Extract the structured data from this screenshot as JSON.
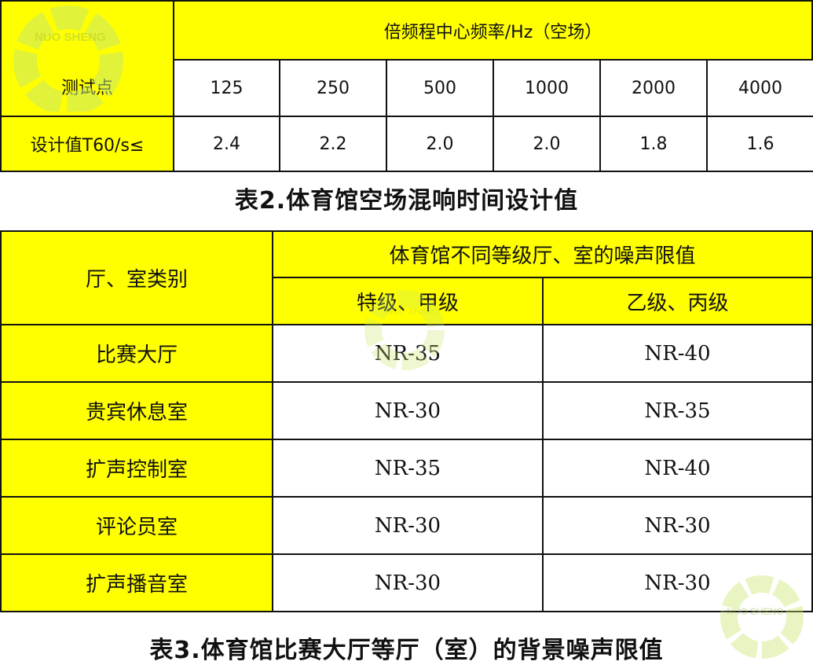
{
  "table2": {
    "caption": "表2.体育馆空场混响时间设计值",
    "corner_header": "测试点",
    "group_header": "倍频程中心频率/Hz（空场）",
    "frequencies": [
      "125",
      "250",
      "500",
      "1000",
      "2000",
      "4000"
    ],
    "row_label": "设计值T60/s≤",
    "values": [
      "2.4",
      "2.2",
      "2.0",
      "2.0",
      "1.8",
      "1.6"
    ]
  },
  "table3": {
    "caption": "表3.体育馆比赛大厅等厅（室）的背景噪声限值",
    "corner_header": "厅、室类别",
    "group_header": "体育馆不同等级厅、室的噪声限值",
    "col_headers": [
      "特级、甲级",
      "乙级、丙级"
    ],
    "rows": [
      {
        "label": "比赛大厅",
        "values": [
          "NR-35",
          "NR-40"
        ]
      },
      {
        "label": "贵宾休息室",
        "values": [
          "NR-30",
          "NR-35"
        ]
      },
      {
        "label": "扩声控制室",
        "values": [
          "NR-35",
          "NR-40"
        ]
      },
      {
        "label": "评论员室",
        "values": [
          "NR-30",
          "NR-30"
        ]
      },
      {
        "label": "扩声播音室",
        "values": [
          "NR-30",
          "NR-30"
        ]
      }
    ]
  },
  "watermark": {
    "text": "NUO SHENG",
    "color": "#c8e86a"
  },
  "colors": {
    "header_bg": "#ffff00",
    "border": "#111111"
  }
}
